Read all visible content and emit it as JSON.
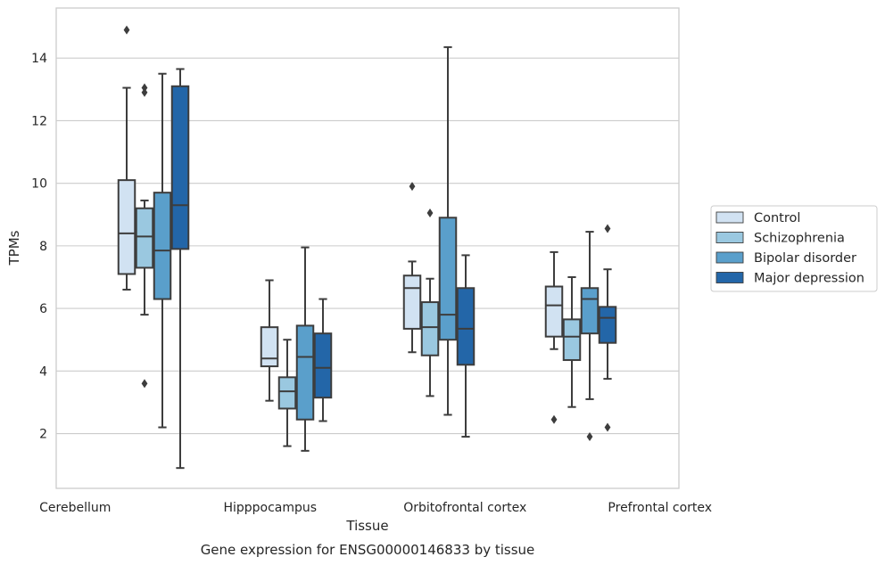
{
  "caption": "Gene expression for ENSG00000146833 by tissue",
  "chart_data": {
    "type": "box",
    "xlabel": "Tissue",
    "ylabel": "TPMs",
    "ylim": [
      0.25,
      15.6
    ],
    "yticks": [
      2,
      4,
      6,
      8,
      10,
      12,
      14
    ],
    "grid": "horizontal",
    "legend_position": "right",
    "categories": [
      "Cerebellum",
      "Hipppocampus",
      "Orbitofrontal cortex",
      "Prefrontal cortex"
    ],
    "colors": [
      "#d1e2f2",
      "#9ac8e0",
      "#5a9fcb",
      "#2366a8"
    ],
    "series": [
      {
        "name": "Control",
        "boxes": [
          {
            "whislo": 6.6,
            "q1": 7.1,
            "med": 8.4,
            "q3": 10.1,
            "whishi": 13.05,
            "fliers": [
              14.9
            ]
          },
          {
            "whislo": 3.05,
            "q1": 4.15,
            "med": 4.4,
            "q3": 5.4,
            "whishi": 6.9,
            "fliers": []
          },
          {
            "whislo": 4.6,
            "q1": 5.35,
            "med": 6.65,
            "q3": 7.05,
            "whishi": 7.5,
            "fliers": [
              9.9
            ]
          },
          {
            "whislo": 4.7,
            "q1": 5.1,
            "med": 6.1,
            "q3": 6.7,
            "whishi": 7.8,
            "fliers": [
              2.45
            ]
          }
        ]
      },
      {
        "name": "Schizophrenia",
        "boxes": [
          {
            "whislo": 5.8,
            "q1": 7.3,
            "med": 8.3,
            "q3": 9.2,
            "whishi": 9.45,
            "fliers": [
              3.6,
              12.9,
              13.05
            ]
          },
          {
            "whislo": 1.6,
            "q1": 2.8,
            "med": 3.35,
            "q3": 3.8,
            "whishi": 5.0,
            "fliers": []
          },
          {
            "whislo": 3.2,
            "q1": 4.5,
            "med": 5.4,
            "q3": 6.2,
            "whishi": 6.95,
            "fliers": [
              9.05
            ]
          },
          {
            "whislo": 2.85,
            "q1": 4.35,
            "med": 5.1,
            "q3": 5.65,
            "whishi": 7.0,
            "fliers": []
          }
        ]
      },
      {
        "name": "Bipolar disorder",
        "boxes": [
          {
            "whislo": 2.2,
            "q1": 6.3,
            "med": 7.85,
            "q3": 9.7,
            "whishi": 13.5,
            "fliers": []
          },
          {
            "whislo": 1.45,
            "q1": 2.45,
            "med": 4.45,
            "q3": 5.45,
            "whishi": 7.95,
            "fliers": []
          },
          {
            "whislo": 2.6,
            "q1": 5.0,
            "med": 5.8,
            "q3": 8.9,
            "whishi": 14.35,
            "fliers": []
          },
          {
            "whislo": 3.1,
            "q1": 5.2,
            "med": 6.3,
            "q3": 6.65,
            "whishi": 8.45,
            "fliers": [
              1.9
            ]
          }
        ]
      },
      {
        "name": "Major depression",
        "boxes": [
          {
            "whislo": 0.9,
            "q1": 7.9,
            "med": 9.3,
            "q3": 13.1,
            "whishi": 13.65,
            "fliers": []
          },
          {
            "whislo": 2.4,
            "q1": 3.15,
            "med": 4.1,
            "q3": 5.2,
            "whishi": 6.3,
            "fliers": []
          },
          {
            "whislo": 1.9,
            "q1": 4.2,
            "med": 5.35,
            "q3": 6.65,
            "whishi": 7.7,
            "fliers": []
          },
          {
            "whislo": 3.75,
            "q1": 4.9,
            "med": 5.7,
            "q3": 6.05,
            "whishi": 7.25,
            "fliers": [
              2.2,
              8.55
            ]
          }
        ]
      }
    ]
  }
}
